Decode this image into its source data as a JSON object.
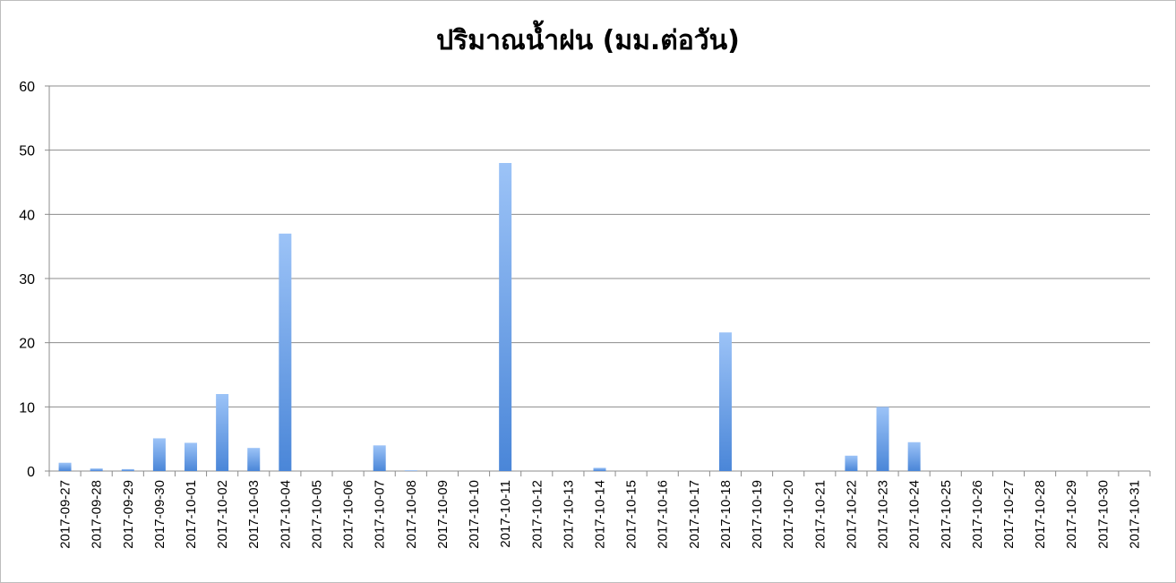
{
  "chart_data": {
    "type": "bar",
    "title": "ปริมาณน้ำฝน (มม.ต่อวัน)",
    "xlabel": "",
    "ylabel": "",
    "ylim": [
      0,
      60
    ],
    "yticks": [
      "0",
      "10",
      "20",
      "30",
      "40",
      "50",
      "60"
    ],
    "grid": true,
    "legend": "none",
    "bar_color": "#4a86d8",
    "bar_color_light": "#9cc3f7",
    "categories": [
      "2017-09-27",
      "2017-09-28",
      "2017-09-29",
      "2017-09-30",
      "2017-10-01",
      "2017-10-02",
      "2017-10-03",
      "2017-10-04",
      "2017-10-05",
      "2017-10-06",
      "2017-10-07",
      "2017-10-08",
      "2017-10-09",
      "2017-10-10",
      "2017-10-11",
      "2017-10-12",
      "2017-10-13",
      "2017-10-14",
      "2017-10-15",
      "2017-10-16",
      "2017-10-17",
      "2017-10-18",
      "2017-10-19",
      "2017-10-20",
      "2017-10-21",
      "2017-10-22",
      "2017-10-23",
      "2017-10-24",
      "2017-10-25",
      "2017-10-26",
      "2017-10-27",
      "2017-10-28",
      "2017-10-29",
      "2017-10-30",
      "2017-10-31"
    ],
    "values": [
      1.3,
      0.4,
      0.3,
      5.1,
      4.4,
      12.0,
      3.6,
      37.0,
      0,
      0,
      4.0,
      0.1,
      0,
      0,
      48.0,
      0,
      0,
      0.5,
      0,
      0,
      0,
      21.6,
      0,
      0,
      0,
      2.4,
      10.0,
      4.5,
      0,
      0,
      0,
      0,
      0,
      0,
      0
    ]
  }
}
